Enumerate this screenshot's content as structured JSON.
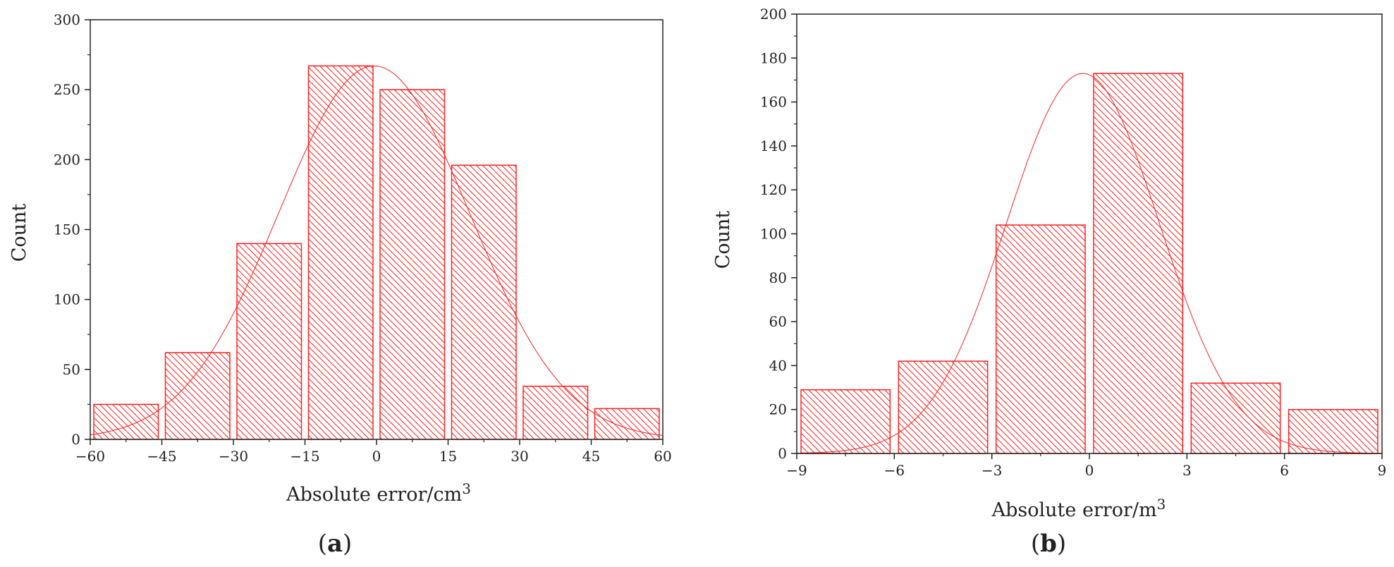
{
  "colors": {
    "accent": "#ff2020",
    "axis": "#222222",
    "background": "#ffffff"
  },
  "chart_data": [
    {
      "type": "bar",
      "panel_label": {
        "open": "(",
        "letter": "a",
        "close": ")"
      },
      "xlabel": "Absolute error/cm",
      "xlabel_sup": "3",
      "ylabel": "Count",
      "xlim": [
        -60,
        60
      ],
      "ylim": [
        0,
        300
      ],
      "xticks": [
        -60,
        -45,
        -30,
        -15,
        0,
        15,
        30,
        45,
        60
      ],
      "xtick_labels": [
        "−60",
        "−45",
        "−30",
        "−15",
        "0",
        "15",
        "30",
        "45",
        "60"
      ],
      "yticks": [
        0,
        50,
        100,
        150,
        200,
        250,
        300
      ],
      "ytick_labels": [
        "0",
        "50",
        "100",
        "150",
        "200",
        "250",
        "300"
      ],
      "bins": [
        {
          "from": -60,
          "to": -45,
          "count": 25
        },
        {
          "from": -45,
          "to": -30,
          "count": 62
        },
        {
          "from": -30,
          "to": -15,
          "count": 140
        },
        {
          "from": -15,
          "to": 0,
          "count": 267
        },
        {
          "from": 0,
          "to": 15,
          "count": 250
        },
        {
          "from": 15,
          "to": 30,
          "count": 196
        },
        {
          "from": 30,
          "to": 45,
          "count": 38
        },
        {
          "from": 45,
          "to": 60,
          "count": 22
        }
      ],
      "fit_curve": {
        "type": "normal",
        "mean": -0.5,
        "sd": 20,
        "peak": 267
      },
      "grid": false,
      "legend": "none"
    },
    {
      "type": "bar",
      "panel_label": {
        "open": "(",
        "letter": "b",
        "close": ")"
      },
      "xlabel": "Absolute error/m",
      "xlabel_sup": "3",
      "ylabel": "Count",
      "xlim": [
        -9,
        9
      ],
      "ylim": [
        0,
        200
      ],
      "xticks": [
        -9,
        -6,
        -3,
        0,
        3,
        6,
        9
      ],
      "xtick_labels": [
        "−9",
        "−6",
        "−3",
        "0",
        "3",
        "6",
        "9"
      ],
      "yticks": [
        0,
        20,
        40,
        60,
        80,
        100,
        120,
        140,
        160,
        180,
        200
      ],
      "ytick_labels": [
        "0",
        "20",
        "40",
        "60",
        "80",
        "100",
        "120",
        "140",
        "160",
        "180",
        "200"
      ],
      "bins": [
        {
          "from": -9,
          "to": -6,
          "count": 29
        },
        {
          "from": -6,
          "to": -3,
          "count": 42
        },
        {
          "from": -3,
          "to": 0,
          "count": 104
        },
        {
          "from": 0,
          "to": 3,
          "count": 173
        },
        {
          "from": 3,
          "to": 6,
          "count": 32
        },
        {
          "from": 6,
          "to": 9,
          "count": 20
        }
      ],
      "fit_curve": {
        "type": "normal",
        "mean": -0.2,
        "sd": 2.35,
        "peak": 173
      },
      "grid": false,
      "legend": "none"
    }
  ]
}
